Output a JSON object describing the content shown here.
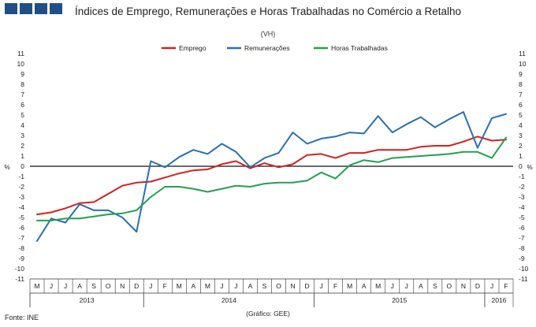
{
  "header": {
    "title": "Índices de Emprego, Remunerações e Horas Trabalhadas no Comércio a Retalho",
    "subtitle": "(VH)"
  },
  "footer": {
    "source": "Fonte: INE",
    "credit": "(Gráfico: GEE)"
  },
  "chart_data": {
    "type": "line",
    "title": "Índices de Emprego, Remunerações e Horas Trabalhadas no Comércio a Retalho",
    "subtitle": "(VH)",
    "ylabel": "%",
    "ylabel_right": "%",
    "ylim": [
      -11,
      11
    ],
    "yticks": [
      11,
      10,
      9,
      8,
      7,
      6,
      5,
      4,
      3,
      2,
      1,
      0,
      -1,
      -2,
      -3,
      -4,
      -5,
      -6,
      -7,
      -8,
      -9,
      -10,
      -11
    ],
    "grid": false,
    "legend_position": "top",
    "categories": [
      "M",
      "J",
      "J",
      "A",
      "S",
      "O",
      "N",
      "D",
      "J",
      "F",
      "M",
      "A",
      "M",
      "J",
      "J",
      "A",
      "S",
      "O",
      "N",
      "D",
      "J",
      "F",
      "M",
      "A",
      "M",
      "J",
      "J",
      "A",
      "S",
      "O",
      "N",
      "D",
      "J",
      "F"
    ],
    "year_groups": [
      {
        "label": "2013",
        "start": 0,
        "end": 7
      },
      {
        "label": "2014",
        "start": 8,
        "end": 19
      },
      {
        "label": "2015",
        "start": 20,
        "end": 31
      },
      {
        "label": "2016",
        "start": 32,
        "end": 33
      }
    ],
    "series": [
      {
        "name": "Emprego",
        "color": "#d42020",
        "values": [
          -4.7,
          -4.5,
          -4.1,
          -3.6,
          -3.5,
          -2.7,
          -1.9,
          -1.6,
          -1.5,
          -1.1,
          -0.7,
          -0.4,
          -0.3,
          0.2,
          0.5,
          -0.2,
          0.3,
          -0.1,
          0.2,
          1.1,
          1.2,
          0.8,
          1.3,
          1.3,
          1.6,
          1.6,
          1.6,
          1.9,
          2.0,
          2.0,
          2.4,
          2.9,
          2.5,
          2.6
        ]
      },
      {
        "name": "Remunerações",
        "color": "#2a6fb0",
        "values": [
          -7.3,
          -5.1,
          -5.5,
          -3.7,
          -4.3,
          -4.3,
          -5.0,
          -6.4,
          0.5,
          -0.1,
          0.9,
          1.6,
          1.2,
          2.2,
          1.4,
          -0.1,
          0.8,
          1.3,
          3.3,
          2.2,
          2.7,
          2.9,
          3.3,
          3.2,
          4.9,
          3.3,
          4.1,
          4.8,
          3.8,
          4.6,
          5.3,
          1.8,
          4.7,
          5.1
        ]
      },
      {
        "name": "Horas Trabalhadas",
        "color": "#23a04e",
        "values": [
          -5.3,
          -5.3,
          -5.1,
          -5.1,
          -4.9,
          -4.7,
          -4.6,
          -4.3,
          -3.0,
          -2.0,
          -2.0,
          -2.2,
          -2.5,
          -2.2,
          -1.9,
          -2.0,
          -1.7,
          -1.6,
          -1.6,
          -1.4,
          -0.6,
          -1.2,
          0.1,
          0.6,
          0.4,
          0.8,
          0.9,
          1.0,
          1.1,
          1.2,
          1.4,
          1.4,
          0.8,
          2.8
        ]
      }
    ]
  }
}
